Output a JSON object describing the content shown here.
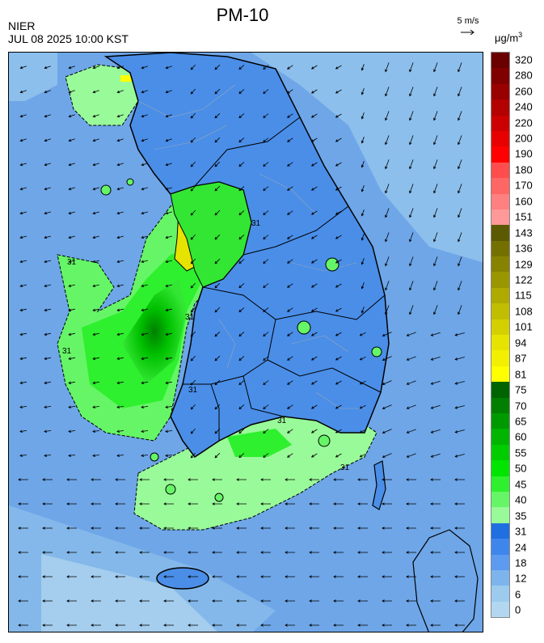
{
  "title": "PM-10",
  "source": "NIER",
  "timestamp": "JUL 08 2025 10:00 KST",
  "wind_reference": {
    "label": "5 m/s"
  },
  "unit": {
    "base": "μg/m",
    "power": "3"
  },
  "legend": {
    "labels": [
      "320",
      "280",
      "260",
      "240",
      "220",
      "200",
      "190",
      "180",
      "170",
      "160",
      "151",
      "143",
      "136",
      "129",
      "122",
      "115",
      "108",
      "101",
      "94",
      "87",
      "81",
      "75",
      "70",
      "65",
      "60",
      "55",
      "50",
      "45",
      "40",
      "35",
      "31",
      "24",
      "18",
      "12",
      "6",
      "0"
    ],
    "colors": [
      "#6b0000",
      "#800000",
      "#990000",
      "#b30000",
      "#cc0000",
      "#e60000",
      "#ff0000",
      "#ff4d4d",
      "#ff6666",
      "#ff8080",
      "#ff9999",
      "#5c5a00",
      "#747000",
      "#878300",
      "#9a9600",
      "#aeaa00",
      "#c1bd00",
      "#d4d000",
      "#e7e300",
      "#f2f000",
      "#ffff00",
      "#006400",
      "#007f00",
      "#009a00",
      "#00b400",
      "#00cc00",
      "#00e400",
      "#2ef02e",
      "#66f566",
      "#99fa99",
      "#1f6fe0",
      "#3f86ec",
      "#5c9bf0",
      "#7eb4ec",
      "#9ccbee",
      "#b3d7f0"
    ]
  },
  "map": {
    "contour_labels": [
      "31",
      "31",
      "31",
      "31",
      "31",
      "31",
      "31"
    ]
  }
}
